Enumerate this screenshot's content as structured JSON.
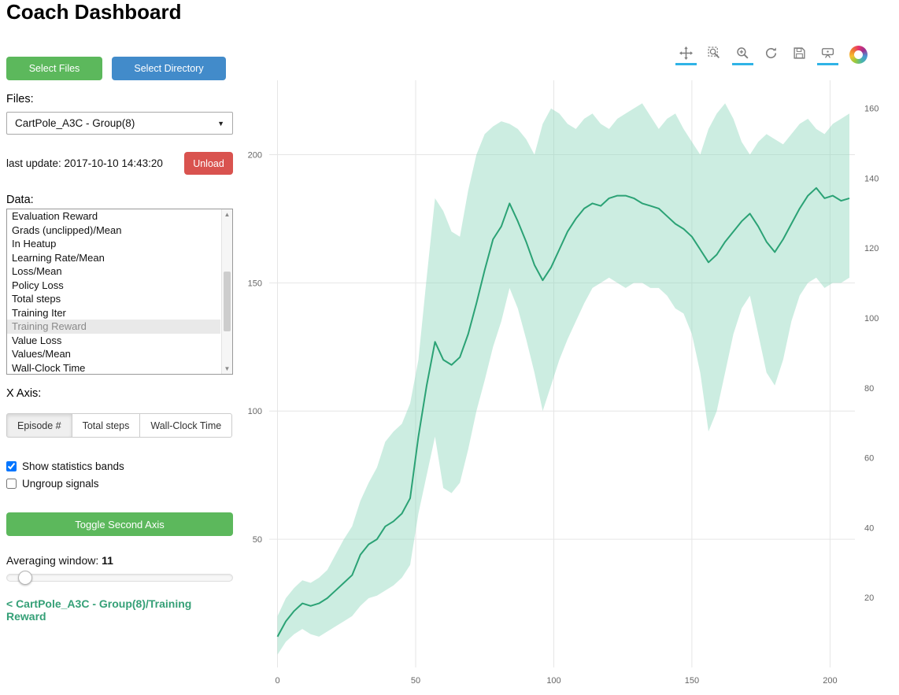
{
  "header": {
    "title": "Coach Dashboard"
  },
  "sidebar": {
    "select_files_label": "Select Files",
    "select_directory_label": "Select Directory",
    "files_label": "Files:",
    "files_selected": "CartPole_A3C - Group(8)",
    "last_update": "last update: 2017-10-10 14:43:20",
    "unload_label": "Unload",
    "data_label": "Data:",
    "data_items": [
      "Evaluation Reward",
      "Grads (unclipped)/Mean",
      "In Heatup",
      "Learning Rate/Mean",
      "Loss/Mean",
      "Policy Loss",
      "Total steps",
      "Training Iter",
      "Training Reward",
      "Value Loss",
      "Values/Mean",
      "Wall-Clock Time"
    ],
    "selected_item": "Training Reward",
    "x_axis_label": "X Axis:",
    "x_axis_options": [
      "Episode #",
      "Total steps",
      "Wall-Clock Time"
    ],
    "x_axis_active": "Episode #",
    "checkboxes": [
      {
        "label": "Show statistics bands",
        "checked": true
      },
      {
        "label": "Ungroup signals",
        "checked": false
      }
    ],
    "toggle_second_axis_label": "Toggle Second Axis",
    "averaging_label": "Averaging window:",
    "averaging_value": "11",
    "breadcrumb": "< CartPole_A3C - Group(8)/Training Reward"
  },
  "toolbar": {
    "tools": [
      {
        "name": "pan",
        "active": true
      },
      {
        "name": "box-zoom",
        "active": false
      },
      {
        "name": "wheel-zoom",
        "active": true
      },
      {
        "name": "reset",
        "active": false
      },
      {
        "name": "save",
        "active": false
      },
      {
        "name": "hover",
        "active": true
      }
    ],
    "logo": "bokeh-logo"
  },
  "chart_data": {
    "type": "line",
    "title": "",
    "xlabel": "",
    "ylabel": "",
    "legend": "off",
    "grid": "on",
    "x_range": [
      -3,
      209
    ],
    "y_range": [
      0,
      229
    ],
    "y2_range": [
      0,
      168
    ],
    "x_ticks": [
      0,
      50,
      100,
      150,
      200
    ],
    "y_ticks": [
      50,
      100,
      150,
      200
    ],
    "y2_ticks": [
      20,
      40,
      60,
      80,
      100,
      120,
      140,
      160
    ],
    "line_color": "#2ba275",
    "band_color": "#8fd6bd",
    "series": [
      {
        "name": "Training Reward",
        "x": [
          0,
          3,
          6,
          9,
          12,
          15,
          18,
          21,
          24,
          27,
          30,
          33,
          36,
          39,
          42,
          45,
          48,
          51,
          54,
          57,
          60,
          63,
          66,
          69,
          72,
          75,
          78,
          81,
          84,
          87,
          90,
          93,
          96,
          99,
          102,
          105,
          108,
          111,
          114,
          117,
          120,
          123,
          126,
          129,
          132,
          135,
          138,
          141,
          144,
          147,
          150,
          153,
          156,
          159,
          162,
          165,
          168,
          171,
          174,
          177,
          180,
          183,
          186,
          189,
          192,
          195,
          198,
          201,
          204,
          207
        ],
        "mean": [
          12,
          18,
          22,
          25,
          24,
          25,
          27,
          30,
          33,
          36,
          44,
          48,
          50,
          55,
          57,
          60,
          66,
          90,
          110,
          127,
          120,
          118,
          121,
          130,
          142,
          155,
          167,
          172,
          181,
          174,
          166,
          157,
          151,
          156,
          163,
          170,
          175,
          179,
          181,
          180,
          183,
          184,
          184,
          183,
          181,
          180,
          179,
          176,
          173,
          171,
          168,
          163,
          158,
          161,
          166,
          170,
          174,
          177,
          172,
          166,
          162,
          167,
          173,
          179,
          184,
          187,
          183,
          184,
          182,
          183
        ],
        "upper": [
          20,
          27,
          31,
          34,
          33,
          35,
          38,
          44,
          50,
          55,
          65,
          72,
          78,
          88,
          92,
          95,
          103,
          120,
          152,
          183,
          178,
          170,
          168,
          186,
          200,
          208,
          211,
          213,
          212,
          210,
          206,
          200,
          212,
          218,
          216,
          212,
          210,
          214,
          216,
          212,
          210,
          214,
          216,
          218,
          220,
          215,
          210,
          214,
          216,
          210,
          205,
          200,
          210,
          216,
          220,
          214,
          205,
          200,
          205,
          208,
          206,
          204,
          208,
          212,
          214,
          210,
          208,
          212,
          214,
          216
        ],
        "lower": [
          5,
          10,
          13,
          15,
          13,
          12,
          14,
          16,
          18,
          20,
          24,
          27,
          28,
          30,
          32,
          35,
          40,
          60,
          75,
          90,
          70,
          68,
          72,
          85,
          100,
          112,
          125,
          135,
          148,
          140,
          128,
          115,
          100,
          110,
          120,
          128,
          135,
          142,
          148,
          150,
          152,
          150,
          148,
          150,
          150,
          148,
          148,
          145,
          140,
          138,
          130,
          115,
          92,
          100,
          115,
          130,
          140,
          145,
          130,
          115,
          110,
          120,
          135,
          145,
          150,
          152,
          148,
          150,
          150,
          152
        ]
      }
    ]
  }
}
